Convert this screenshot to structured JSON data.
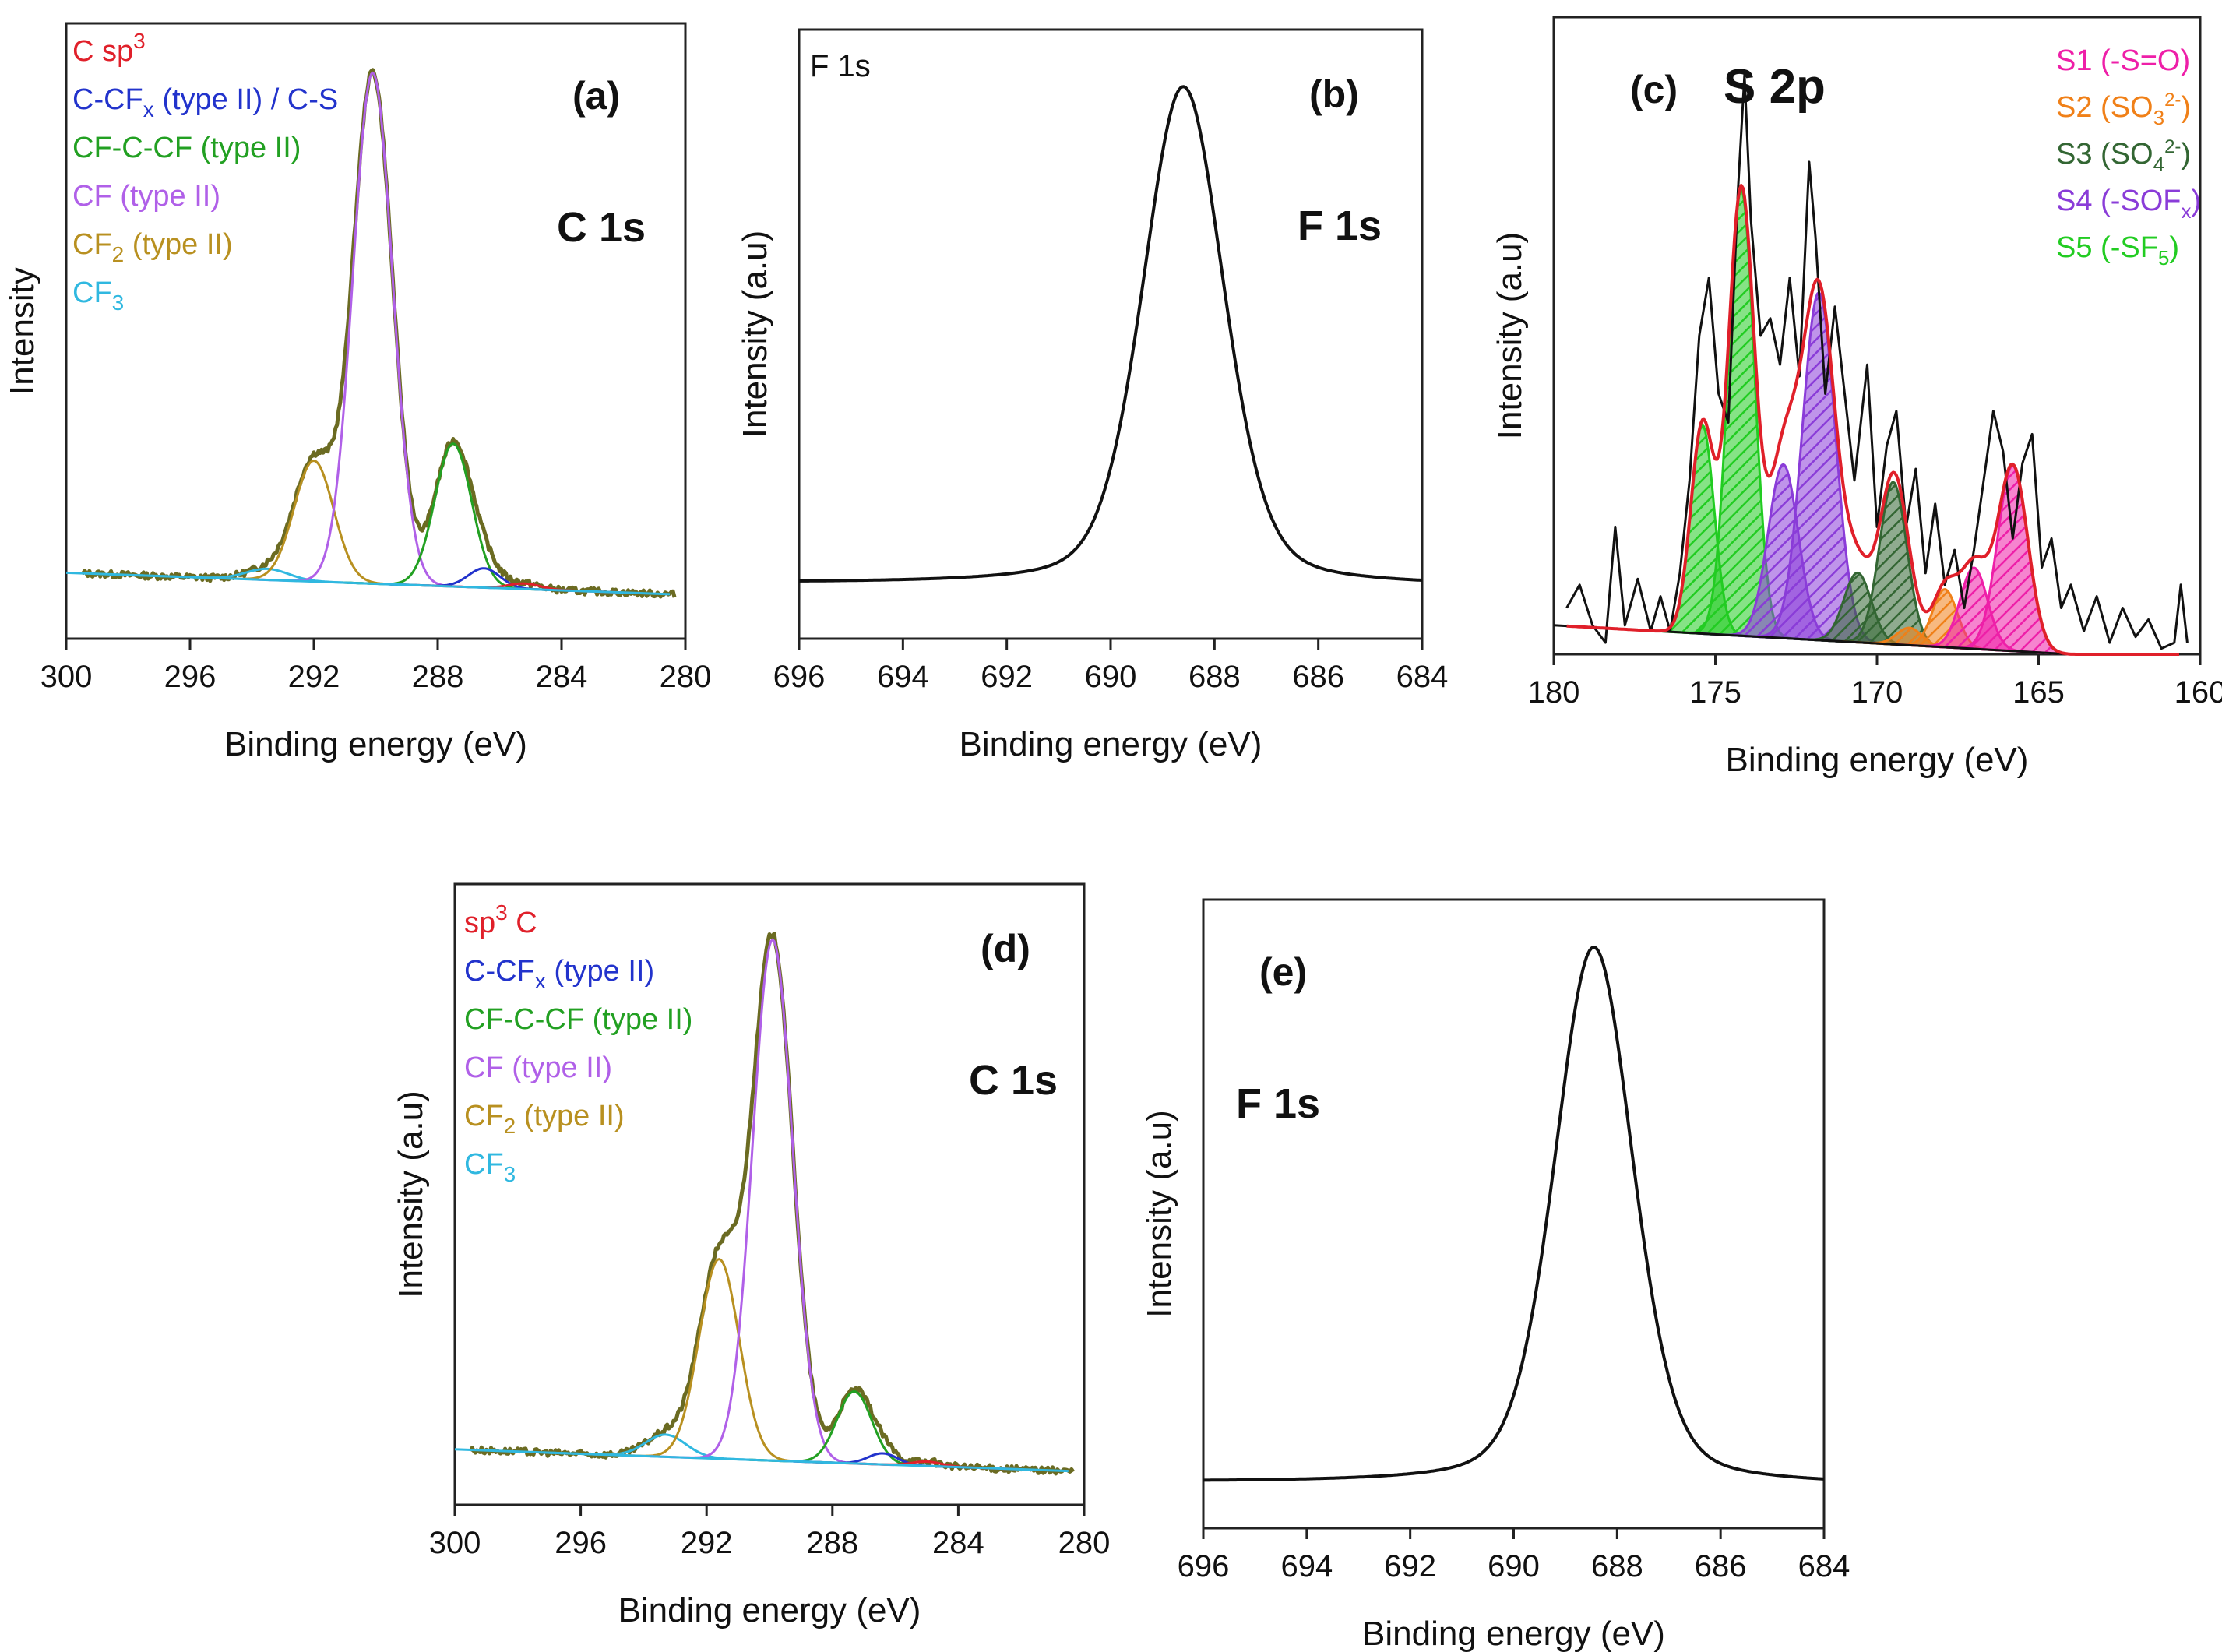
{
  "chart_data": [
    {
      "id": "a",
      "type": "line",
      "panel_label": "(a)",
      "title": "C 1s",
      "xlabel": "Binding energy (eV)",
      "ylabel": "Intensity",
      "xlim": [
        300,
        280
      ],
      "ylim": [
        0,
        1.12
      ],
      "x_ticks": [
        300,
        296,
        292,
        288,
        284,
        280
      ],
      "legend": [
        {
          "name": "C sp",
          "sup": "3",
          "sub": "",
          "tail": "",
          "color": "#e0202a"
        },
        {
          "name": "C-CF",
          "sup": "",
          "sub": "x",
          "tail": " (type II) / C-S",
          "color": "#2233cc"
        },
        {
          "name": "CF-C-CF (type II)",
          "sup": "",
          "sub": "",
          "tail": "",
          "color": "#22a022"
        },
        {
          "name": "CF (type II)",
          "sup": "",
          "sub": "",
          "tail": "",
          "color": "#b060e8"
        },
        {
          "name": "CF",
          "sup": "",
          "sub": "2",
          "tail": " (type II)",
          "color": "#b89020"
        },
        {
          "name": "CF",
          "sup": "",
          "sub": "3",
          "tail": "",
          "color": "#30b8e0"
        }
      ],
      "baseline": {
        "x": [
          300,
          280
        ],
        "y": [
          0.12,
          0.08
        ],
        "color": "#30b8e0"
      },
      "components": [
        {
          "name": "CF3",
          "center": 293.5,
          "fwhm": 1.6,
          "height": 0.02,
          "color": "#30b8e0"
        },
        {
          "name": "CF2 (type II)",
          "center": 292.0,
          "fwhm": 1.5,
          "height": 0.22,
          "color": "#b89020"
        },
        {
          "name": "CF (type II)",
          "center": 290.1,
          "fwhm": 1.5,
          "height": 0.93,
          "color": "#b060e8"
        },
        {
          "name": "CF-C-CF (type II)",
          "center": 287.5,
          "fwhm": 1.4,
          "height": 0.26,
          "color": "#22a022"
        },
        {
          "name": "C-CFx (type II) / C-S",
          "center": 286.5,
          "fwhm": 1.2,
          "height": 0.035,
          "color": "#2233cc"
        },
        {
          "name": "C sp3",
          "center": 285.2,
          "fwhm": 1.2,
          "height": 0.01,
          "color": "#e0202a"
        }
      ],
      "envelope_color": "#6b6b22"
    },
    {
      "id": "b",
      "type": "line",
      "panel_label": "(b)",
      "title": "F 1s",
      "inner_title": "F 1s",
      "xlabel": "Binding energy (eV)",
      "ylabel": "Intensity (a.u)",
      "xlim": [
        696,
        684
      ],
      "ylim": [
        0,
        1.1
      ],
      "x_ticks": [
        696,
        694,
        692,
        690,
        688,
        686,
        684
      ],
      "peak": {
        "center": 688.6,
        "fwhm": 1.85,
        "height": 0.9,
        "baseline_start": 0.1,
        "baseline_end": 0.095
      },
      "color": "#111111"
    },
    {
      "id": "c",
      "type": "line",
      "panel_label": "(c)",
      "title": "S 2p",
      "xlabel": "Binding energy (eV)",
      "ylabel": "Intensity (a.u)",
      "xlim": [
        180,
        160
      ],
      "ylim": [
        0,
        1.1
      ],
      "x_ticks": [
        180,
        175,
        170,
        165,
        160
      ],
      "legend": [
        {
          "name": "S1 (-S=O)",
          "color": "#ee1fa8"
        },
        {
          "name": "S2 (SO3 2-)",
          "color": "#f08018"
        },
        {
          "name": "S3 (SO4 2-)",
          "color": "#336633"
        },
        {
          "name": "S4 (-SOFx)",
          "color": "#8a3cd8"
        },
        {
          "name": "S5 (-SF5)",
          "color": "#22cc22"
        }
      ],
      "legend_display": [
        {
          "base": "S1 (-S=O)",
          "sub": "",
          "sup": "",
          "tail": ""
        },
        {
          "base": "S2 (SO",
          "sub": "3",
          "sup": "2-",
          "tail": ")"
        },
        {
          "base": "S3 (SO",
          "sub": "4",
          "sup": "2-",
          "tail": ")"
        },
        {
          "base": "S4 (-SOF",
          "sub": "x",
          "sup": "",
          "tail": ")"
        },
        {
          "base": "S5 (-SF",
          "sub": "5",
          "sup": "",
          "tail": ")"
        }
      ],
      "baseline": {
        "x": [
          180,
          164
        ],
        "y": [
          0.05,
          0.0
        ]
      },
      "raw_points": [
        [
          179.6,
          0.08
        ],
        [
          179.2,
          0.12
        ],
        [
          178.8,
          0.05
        ],
        [
          178.4,
          0.02
        ],
        [
          178.1,
          0.22
        ],
        [
          177.8,
          0.05
        ],
        [
          177.4,
          0.13
        ],
        [
          177.0,
          0.04
        ],
        [
          176.7,
          0.1
        ],
        [
          176.4,
          0.04
        ],
        [
          176.1,
          0.14
        ],
        [
          175.8,
          0.3
        ],
        [
          175.5,
          0.55
        ],
        [
          175.2,
          0.65
        ],
        [
          174.9,
          0.45
        ],
        [
          174.6,
          0.4
        ],
        [
          174.3,
          0.8
        ],
        [
          174.1,
          1.0
        ],
        [
          173.9,
          0.75
        ],
        [
          173.6,
          0.55
        ],
        [
          173.3,
          0.58
        ],
        [
          173.0,
          0.5
        ],
        [
          172.7,
          0.65
        ],
        [
          172.4,
          0.48
        ],
        [
          172.1,
          0.85
        ],
        [
          171.9,
          0.72
        ],
        [
          171.6,
          0.45
        ],
        [
          171.3,
          0.6
        ],
        [
          171.0,
          0.45
        ],
        [
          170.7,
          0.3
        ],
        [
          170.3,
          0.5
        ],
        [
          170.0,
          0.22
        ],
        [
          169.7,
          0.36
        ],
        [
          169.4,
          0.42
        ],
        [
          169.1,
          0.22
        ],
        [
          168.8,
          0.32
        ],
        [
          168.5,
          0.14
        ],
        [
          168.2,
          0.26
        ],
        [
          167.9,
          0.12
        ],
        [
          167.6,
          0.18
        ],
        [
          167.3,
          0.08
        ],
        [
          167.0,
          0.18
        ],
        [
          166.7,
          0.3
        ],
        [
          166.4,
          0.42
        ],
        [
          166.1,
          0.35
        ],
        [
          165.8,
          0.2
        ],
        [
          165.5,
          0.33
        ],
        [
          165.2,
          0.38
        ],
        [
          164.9,
          0.15
        ],
        [
          164.6,
          0.2
        ],
        [
          164.3,
          0.08
        ],
        [
          164.0,
          0.12
        ],
        [
          163.6,
          0.04
        ],
        [
          163.2,
          0.1
        ],
        [
          162.8,
          0.02
        ],
        [
          162.4,
          0.08
        ],
        [
          162.0,
          0.03
        ],
        [
          161.6,
          0.06
        ],
        [
          161.2,
          0.01
        ],
        [
          160.8,
          0.02
        ],
        [
          160.6,
          0.12
        ],
        [
          160.4,
          0.02
        ]
      ],
      "components": [
        {
          "name": "S5a",
          "center": 175.4,
          "fwhm": 0.85,
          "height": 0.36,
          "color": "#22cc22",
          "legend": "S5"
        },
        {
          "name": "S5b",
          "center": 174.2,
          "fwhm": 0.95,
          "height": 0.77,
          "color": "#22cc22",
          "legend": "S5"
        },
        {
          "name": "S4a",
          "center": 172.9,
          "fwhm": 1.1,
          "height": 0.3,
          "color": "#8a3cd8",
          "legend": "S4"
        },
        {
          "name": "S4b",
          "center": 171.8,
          "fwhm": 1.2,
          "height": 0.6,
          "color": "#8a3cd8",
          "legend": "S4"
        },
        {
          "name": "S3a",
          "center": 170.6,
          "fwhm": 1.0,
          "height": 0.12,
          "color": "#336633",
          "legend": "S3"
        },
        {
          "name": "S3b",
          "center": 169.5,
          "fwhm": 1.0,
          "height": 0.28,
          "color": "#336633",
          "legend": "S3"
        },
        {
          "name": "S2a",
          "center": 169.0,
          "fwhm": 0.9,
          "height": 0.03,
          "color": "#f08018",
          "legend": "S2"
        },
        {
          "name": "S2b",
          "center": 167.9,
          "fwhm": 0.9,
          "height": 0.1,
          "color": "#f08018",
          "legend": "S2"
        },
        {
          "name": "S1a",
          "center": 167.0,
          "fwhm": 1.0,
          "height": 0.14,
          "color": "#ee1fa8",
          "legend": "S1"
        },
        {
          "name": "S1b",
          "center": 165.8,
          "fwhm": 1.1,
          "height": 0.32,
          "color": "#ee1fa8",
          "legend": "S1"
        }
      ],
      "envelope_color": "#e0202a",
      "raw_color": "#111111"
    },
    {
      "id": "d",
      "type": "line",
      "panel_label": "(d)",
      "title": "C 1s",
      "xlabel": "Binding energy (eV)",
      "ylabel": "Intensity (a.u)",
      "xlim": [
        300,
        280
      ],
      "ylim": [
        0,
        1.12
      ],
      "x_ticks": [
        300,
        296,
        292,
        288,
        284,
        280
      ],
      "legend": [
        {
          "name": "sp",
          "sup": "3",
          "sub": "",
          "tail": " C",
          "color": "#e0202a"
        },
        {
          "name": "C-CF",
          "sup": "",
          "sub": "x",
          "tail": " (type II)",
          "color": "#2233cc"
        },
        {
          "name": "CF-C-CF (type II)",
          "sup": "",
          "sub": "",
          "tail": "",
          "color": "#22a022"
        },
        {
          "name": "CF (type II)",
          "sup": "",
          "sub": "",
          "tail": "",
          "color": "#b060e8"
        },
        {
          "name": "CF",
          "sup": "",
          "sub": "2",
          "tail": " (type II)",
          "color": "#b89020"
        },
        {
          "name": "CF",
          "sup": "",
          "sub": "3",
          "tail": "",
          "color": "#30b8e0"
        }
      ],
      "baseline": {
        "x": [
          300,
          280
        ],
        "y": [
          0.1,
          0.06
        ],
        "color": "#30b8e0"
      },
      "components": [
        {
          "name": "CF3",
          "center": 293.3,
          "fwhm": 1.5,
          "height": 0.04,
          "color": "#30b8e0"
        },
        {
          "name": "CF2 (type II)",
          "center": 291.6,
          "fwhm": 1.5,
          "height": 0.36,
          "color": "#b89020"
        },
        {
          "name": "CF (type II)",
          "center": 289.9,
          "fwhm": 1.5,
          "height": 0.94,
          "color": "#b060e8"
        },
        {
          "name": "CF-C-CF (type II)",
          "center": 287.3,
          "fwhm": 1.3,
          "height": 0.13,
          "color": "#22a022"
        },
        {
          "name": "C-CFx (type II)",
          "center": 286.4,
          "fwhm": 1.1,
          "height": 0.02,
          "color": "#2233cc"
        },
        {
          "name": "sp3 C",
          "center": 285.0,
          "fwhm": 1.1,
          "height": 0.008,
          "color": "#e0202a"
        }
      ],
      "envelope_color": "#6b6b22"
    },
    {
      "id": "e",
      "type": "line",
      "panel_label": "(e)",
      "title": "F 1s",
      "xlabel": "Binding energy (eV)",
      "ylabel": "Intensity (a.u)",
      "xlim": [
        696,
        684
      ],
      "ylim": [
        0,
        1.1
      ],
      "x_ticks": [
        696,
        694,
        692,
        690,
        688,
        686,
        684
      ],
      "peak": {
        "center": 688.45,
        "fwhm": 1.8,
        "height": 0.94,
        "baseline_start": 0.08,
        "baseline_end": 0.075
      },
      "color": "#111111"
    }
  ]
}
